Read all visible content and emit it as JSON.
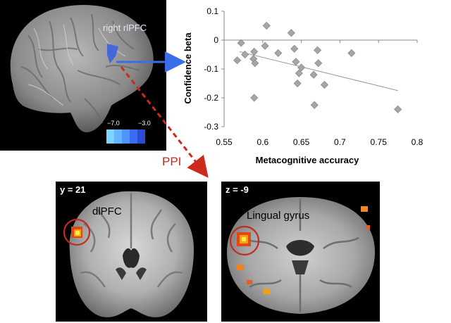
{
  "brain_panel": {
    "region_label": "right rlPFC",
    "colorbar": {
      "min_label": "−7.0",
      "max_label": "−3.0",
      "colors": [
        "#7fd3ff",
        "#66b6ff",
        "#4f95ff",
        "#3b6cf2",
        "#2a4bd6"
      ]
    }
  },
  "ppi_label": "PPI",
  "coronal": {
    "slice_label": "y = 21",
    "region_label": "dlPFC"
  },
  "axial": {
    "slice_label": "z = -9",
    "region_label": "Lingual gyrus"
  },
  "chart_data": {
    "type": "scatter",
    "xlabel": "Metacognitive accuracy",
    "ylabel": "Confidence beta",
    "xlim": [
      0.55,
      0.8
    ],
    "ylim": [
      -0.3,
      0.1
    ],
    "x_ticks": [
      "0.55",
      "0.6",
      "0.65",
      "0.7",
      "0.75",
      "0.8"
    ],
    "y_ticks": [
      "0.1",
      "0",
      "-0.1",
      "-0.2",
      "-0.3"
    ],
    "grid": false,
    "marker_color": "#a6a6a6",
    "trendline": {
      "x": [
        0.57,
        0.775
      ],
      "y": [
        -0.04,
        -0.175
      ]
    },
    "points": [
      {
        "x": 0.567,
        "y": -0.07
      },
      {
        "x": 0.572,
        "y": -0.01
      },
      {
        "x": 0.577,
        "y": -0.05
      },
      {
        "x": 0.588,
        "y": -0.065
      },
      {
        "x": 0.589,
        "y": -0.04
      },
      {
        "x": 0.59,
        "y": -0.08
      },
      {
        "x": 0.589,
        "y": -0.2
      },
      {
        "x": 0.603,
        "y": -0.02
      },
      {
        "x": 0.605,
        "y": 0.05
      },
      {
        "x": 0.62,
        "y": -0.045
      },
      {
        "x": 0.637,
        "y": 0.025
      },
      {
        "x": 0.641,
        "y": -0.03
      },
      {
        "x": 0.643,
        "y": -0.075
      },
      {
        "x": 0.645,
        "y": -0.15
      },
      {
        "x": 0.647,
        "y": -0.115
      },
      {
        "x": 0.65,
        "y": -0.095
      },
      {
        "x": 0.666,
        "y": -0.12
      },
      {
        "x": 0.667,
        "y": -0.225
      },
      {
        "x": 0.671,
        "y": -0.035
      },
      {
        "x": 0.672,
        "y": -0.08
      },
      {
        "x": 0.68,
        "y": -0.155
      },
      {
        "x": 0.715,
        "y": -0.045
      },
      {
        "x": 0.775,
        "y": -0.24
      }
    ]
  }
}
